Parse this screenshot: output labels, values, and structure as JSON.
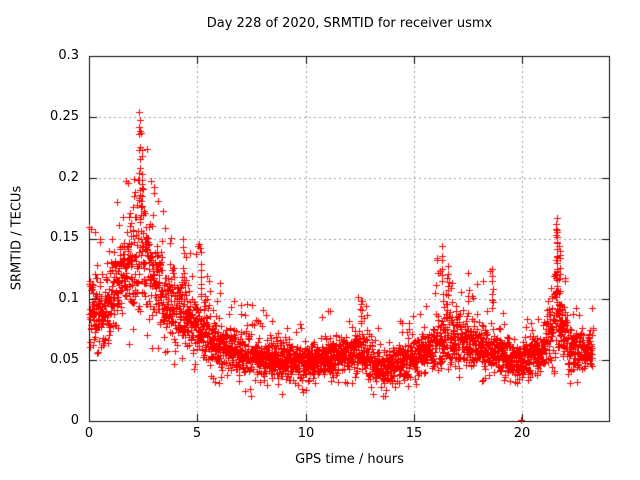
{
  "figure": {
    "background": "#ffffff"
  },
  "chart_data": {
    "type": "scatter",
    "title": "Day 228 of 2020, SRMTID for receiver usmx",
    "xlabel": "GPS time / hours",
    "ylabel": "SRMTID / TECUs",
    "xlim": [
      0,
      24
    ],
    "ylim": [
      0,
      0.3
    ],
    "xticks": [
      0,
      5,
      10,
      15,
      20
    ],
    "xtick_labels": [
      "0",
      "5",
      "10",
      "15",
      "20"
    ],
    "yticks": [
      0,
      0.05,
      0.1,
      0.15,
      0.2,
      0.25,
      0.3
    ],
    "ytick_labels": [
      "0",
      "0.05",
      "0.1",
      "0.15",
      "0.2",
      "0.25",
      "0.3"
    ],
    "grid": true,
    "legend": "none",
    "marker": {
      "shape": "plus",
      "size": 7,
      "color": "#ff0000"
    },
    "style": {
      "grid_color": "#9e9e9e",
      "axis_color": "#000000",
      "text_color": "#000000"
    },
    "scatter": {
      "n_points": 3200,
      "x_start": 0.0,
      "x_end": 23.25,
      "seed": 20200228,
      "envelope": [
        [
          0.0,
          0.095,
          0.03,
          0.05,
          0.16
        ],
        [
          0.5,
          0.09,
          0.028,
          0.05,
          0.155
        ],
        [
          1.0,
          0.1,
          0.03,
          0.05,
          0.165
        ],
        [
          1.5,
          0.115,
          0.035,
          0.055,
          0.19
        ],
        [
          2.0,
          0.135,
          0.042,
          0.065,
          0.225
        ],
        [
          2.4,
          0.15,
          0.05,
          0.07,
          0.258
        ],
        [
          2.8,
          0.125,
          0.04,
          0.06,
          0.205
        ],
        [
          3.2,
          0.11,
          0.035,
          0.055,
          0.185
        ],
        [
          3.6,
          0.1,
          0.032,
          0.05,
          0.17
        ],
        [
          4.0,
          0.09,
          0.03,
          0.045,
          0.155
        ],
        [
          4.5,
          0.085,
          0.028,
          0.042,
          0.158
        ],
        [
          5.0,
          0.08,
          0.027,
          0.04,
          0.15
        ],
        [
          5.5,
          0.07,
          0.024,
          0.035,
          0.13
        ],
        [
          6.0,
          0.062,
          0.02,
          0.03,
          0.115
        ],
        [
          6.5,
          0.058,
          0.018,
          0.028,
          0.1
        ],
        [
          7.0,
          0.055,
          0.016,
          0.024,
          0.095
        ],
        [
          7.5,
          0.053,
          0.016,
          0.02,
          0.1
        ],
        [
          8.0,
          0.051,
          0.015,
          0.024,
          0.092
        ],
        [
          8.5,
          0.052,
          0.015,
          0.026,
          0.095
        ],
        [
          9.0,
          0.05,
          0.015,
          0.02,
          0.085
        ],
        [
          9.5,
          0.048,
          0.014,
          0.02,
          0.08
        ],
        [
          10.0,
          0.048,
          0.013,
          0.024,
          0.08
        ],
        [
          10.5,
          0.05,
          0.013,
          0.027,
          0.085
        ],
        [
          11.0,
          0.052,
          0.014,
          0.028,
          0.09
        ],
        [
          11.5,
          0.055,
          0.015,
          0.03,
          0.095
        ],
        [
          12.0,
          0.056,
          0.016,
          0.03,
          0.1
        ],
        [
          12.5,
          0.06,
          0.018,
          0.03,
          0.105
        ],
        [
          13.0,
          0.05,
          0.016,
          0.022,
          0.09
        ],
        [
          13.5,
          0.042,
          0.014,
          0.018,
          0.078
        ],
        [
          14.0,
          0.045,
          0.014,
          0.02,
          0.08
        ],
        [
          14.5,
          0.05,
          0.014,
          0.028,
          0.085
        ],
        [
          15.0,
          0.052,
          0.015,
          0.03,
          0.092
        ],
        [
          15.5,
          0.056,
          0.016,
          0.03,
          0.1
        ],
        [
          16.0,
          0.065,
          0.02,
          0.035,
          0.135
        ],
        [
          16.5,
          0.07,
          0.022,
          0.036,
          0.145
        ],
        [
          17.0,
          0.065,
          0.02,
          0.035,
          0.125
        ],
        [
          17.5,
          0.068,
          0.02,
          0.035,
          0.13
        ],
        [
          18.0,
          0.06,
          0.018,
          0.032,
          0.112
        ],
        [
          18.5,
          0.06,
          0.019,
          0.03,
          0.128
        ],
        [
          19.0,
          0.055,
          0.016,
          0.03,
          0.095
        ],
        [
          19.5,
          0.052,
          0.014,
          0.028,
          0.085
        ],
        [
          20.0,
          0.05,
          0.014,
          0.026,
          0.08
        ],
        [
          20.5,
          0.055,
          0.015,
          0.03,
          0.09
        ],
        [
          21.0,
          0.06,
          0.016,
          0.032,
          0.1
        ],
        [
          21.5,
          0.088,
          0.038,
          0.04,
          0.168
        ],
        [
          21.8,
          0.078,
          0.028,
          0.038,
          0.145
        ],
        [
          22.2,
          0.06,
          0.018,
          0.03,
          0.1
        ],
        [
          22.6,
          0.058,
          0.016,
          0.03,
          0.095
        ],
        [
          23.0,
          0.06,
          0.018,
          0.032,
          0.1
        ],
        [
          23.25,
          0.06,
          0.018,
          0.032,
          0.095
        ]
      ],
      "columns": [
        [
          2.32,
          0.19,
          0.258,
          10
        ],
        [
          2.45,
          0.165,
          0.24,
          8
        ],
        [
          4.35,
          0.1,
          0.156,
          7
        ],
        [
          5.15,
          0.098,
          0.148,
          7
        ],
        [
          12.55,
          0.078,
          0.104,
          5
        ],
        [
          16.3,
          0.098,
          0.144,
          8
        ],
        [
          16.55,
          0.09,
          0.13,
          6
        ],
        [
          17.5,
          0.088,
          0.128,
          6
        ],
        [
          18.62,
          0.088,
          0.126,
          6
        ],
        [
          21.58,
          0.088,
          0.168,
          22
        ],
        [
          21.72,
          0.078,
          0.148,
          12
        ]
      ],
      "outliers": [
        [
          19.92,
          0.001
        ]
      ]
    }
  }
}
